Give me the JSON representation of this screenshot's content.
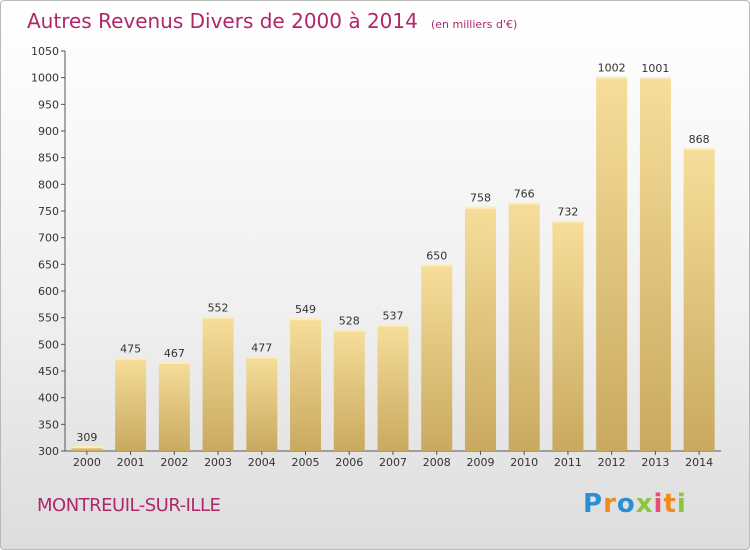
{
  "chart_data": {
    "type": "bar",
    "title": "Autres Revenus Divers de 2000 à 2014",
    "subtitle": "(en milliers d'€)",
    "categories": [
      "2000",
      "2001",
      "2002",
      "2003",
      "2004",
      "2005",
      "2006",
      "2007",
      "2008",
      "2009",
      "2010",
      "2011",
      "2012",
      "2013",
      "2014"
    ],
    "values": [
      309,
      475,
      467,
      552,
      477,
      549,
      528,
      537,
      650,
      758,
      766,
      732,
      1002,
      1001,
      868
    ],
    "ylim": [
      300,
      1050
    ],
    "yticks": [
      300,
      350,
      400,
      450,
      500,
      550,
      600,
      650,
      700,
      750,
      800,
      850,
      900,
      950,
      1000,
      1050
    ],
    "xlabel": "",
    "ylabel": "",
    "grid": false,
    "bar_color": "#e8c97f",
    "title_color": "#b0266b"
  },
  "footer": {
    "commune": "MONTREUIL-SUR-ILLE",
    "brand_letters": [
      {
        "ch": "P",
        "color": "#2b8fd6"
      },
      {
        "ch": "r",
        "color": "#f08a1c"
      },
      {
        "ch": "o",
        "color": "#2b8fd6"
      },
      {
        "ch": "x",
        "color": "#8cc63f"
      },
      {
        "ch": "i",
        "color": "#e94e77"
      },
      {
        "ch": "t",
        "color": "#f08a1c"
      },
      {
        "ch": "i",
        "color": "#8cc63f"
      }
    ]
  }
}
